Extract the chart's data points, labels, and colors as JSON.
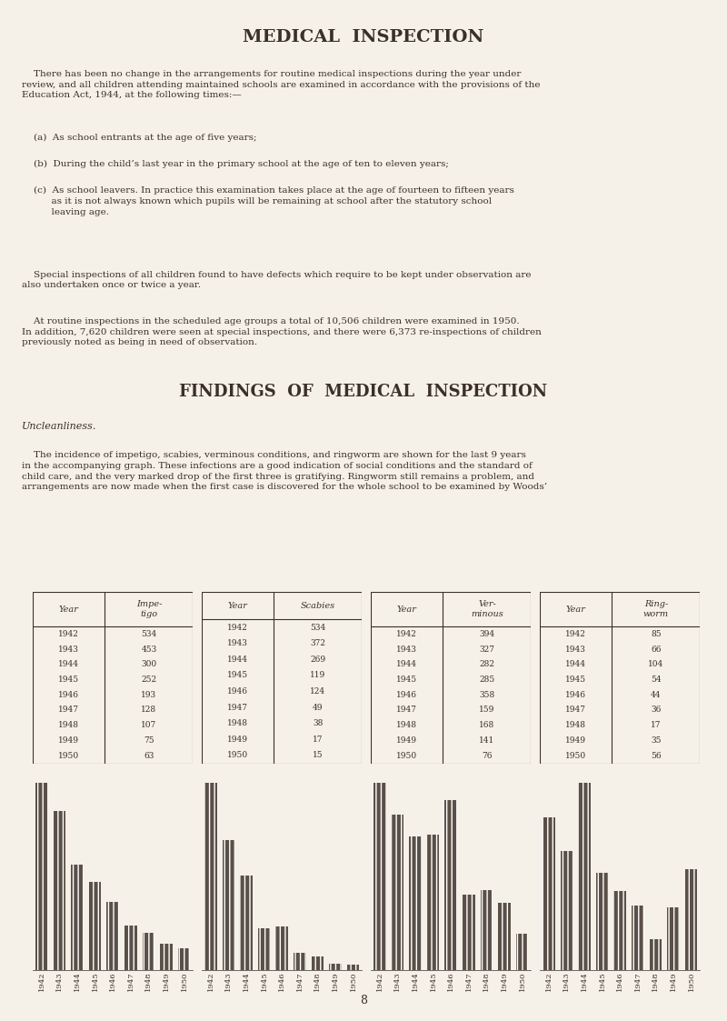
{
  "bg_color": "#f5f0e8",
  "text_color": "#3a3028",
  "title": "MEDICAL  INSPECTION",
  "findings_title": "FINDINGS  OF  MEDICAL  INSPECTION",
  "uncleanliness_label": "Uncleanliness.",
  "years": [
    1942,
    1943,
    1944,
    1945,
    1946,
    1947,
    1948,
    1949,
    1950
  ],
  "impetigo": [
    534,
    453,
    300,
    252,
    193,
    128,
    107,
    75,
    63
  ],
  "scabies": [
    534,
    372,
    269,
    119,
    124,
    49,
    38,
    17,
    15
  ],
  "verminous": [
    394,
    327,
    282,
    285,
    358,
    159,
    168,
    141,
    76
  ],
  "ringworm": [
    85,
    66,
    104,
    54,
    44,
    36,
    17,
    35,
    56
  ],
  "table_headers": [
    [
      "Year",
      "Impe-\ntigo"
    ],
    [
      "Year",
      "Scabies"
    ],
    [
      "Year",
      "Ver-\nminous"
    ],
    [
      "Year",
      "Ring-\nworm"
    ]
  ],
  "bar_color": "#5a5048",
  "bar_hatch": "|||",
  "page_number": "8"
}
